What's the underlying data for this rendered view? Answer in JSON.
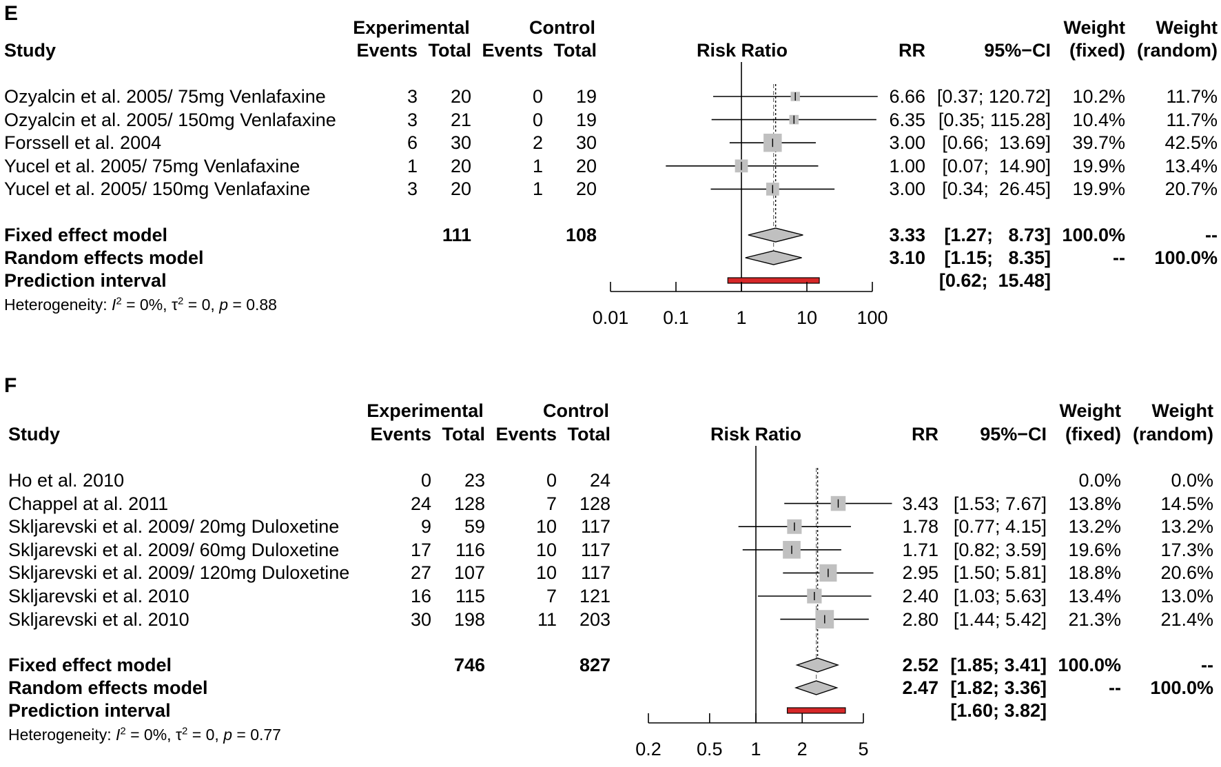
{
  "chart_data": [
    {
      "type": "forest",
      "panel_label": "E",
      "headers": {
        "study": "Study",
        "experimental": "Experimental",
        "control": "Control",
        "events": "Events",
        "total": "Total",
        "risk_ratio": "Risk Ratio",
        "rr": "RR",
        "ci": "95%−CI",
        "weight": "Weight",
        "fixed": "(fixed)",
        "random": "(random)"
      },
      "studies": [
        {
          "name": "Ozyalcin et al. 2005/ 75mg Venlafaxine",
          "e_events": "3",
          "e_total": "20",
          "c_events": "0",
          "c_total": "19",
          "rr_text": "6.66",
          "ci_text": "[0.37; 120.72]",
          "w_fixed": "10.2%",
          "w_random": "11.7%",
          "rr": 6.66,
          "lo": 0.37,
          "hi": 120.72,
          "wf": 10.2
        },
        {
          "name": "Ozyalcin et al. 2005/ 150mg Venlafaxine",
          "e_events": "3",
          "e_total": "21",
          "c_events": "0",
          "c_total": "19",
          "rr_text": "6.35",
          "ci_text": "[0.35; 115.28]",
          "w_fixed": "10.4%",
          "w_random": "11.7%",
          "rr": 6.35,
          "lo": 0.35,
          "hi": 115.28,
          "wf": 10.4
        },
        {
          "name": "Forssell et al. 2004",
          "e_events": "6",
          "e_total": "30",
          "c_events": "2",
          "c_total": "30",
          "rr_text": "3.00",
          "ci_text": "[0.66;  13.69]",
          "w_fixed": "39.7%",
          "w_random": "42.5%",
          "rr": 3.0,
          "lo": 0.66,
          "hi": 13.69,
          "wf": 39.7
        },
        {
          "name": "Yucel et al. 2005/ 75mg Venlafaxine",
          "e_events": "1",
          "e_total": "20",
          "c_events": "1",
          "c_total": "20",
          "rr_text": "1.00",
          "ci_text": "[0.07;  14.90]",
          "w_fixed": "19.9%",
          "w_random": "13.4%",
          "rr": 1.0,
          "lo": 0.07,
          "hi": 14.9,
          "wf": 19.9
        },
        {
          "name": "Yucel et al. 2005/ 150mg Venlafaxine",
          "e_events": "3",
          "e_total": "20",
          "c_events": "1",
          "c_total": "20",
          "rr_text": "3.00",
          "ci_text": "[0.34;  26.45]",
          "w_fixed": "19.9%",
          "w_random": "20.7%",
          "rr": 3.0,
          "lo": 0.34,
          "hi": 26.45,
          "wf": 19.9
        }
      ],
      "fixed": {
        "label": "Fixed effect model",
        "e_total": "111",
        "c_total": "108",
        "rr_text": "3.33",
        "ci_text": "[1.27;   8.73]",
        "w_fixed": "100.0%",
        "w_random": "--",
        "rr": 3.33,
        "lo": 1.27,
        "hi": 8.73
      },
      "random": {
        "label": "Random effects model",
        "rr_text": "3.10",
        "ci_text": "[1.15;   8.35]",
        "w_fixed": "--",
        "w_random": "100.0%",
        "rr": 3.1,
        "lo": 1.15,
        "hi": 8.35
      },
      "prediction": {
        "label": "Prediction interval",
        "ci_text": "[0.62;  15.48]",
        "lo": 0.62,
        "hi": 15.48
      },
      "heterogeneity": {
        "prefix": "Heterogeneity: ",
        "i2": "I",
        "eq1": " = 0%, ",
        "tau": "τ",
        "eq2": " = 0, ",
        "p": "p",
        "eq3": " = 0.88"
      },
      "axis": {
        "scale": "log",
        "ticks": [
          0.01,
          0.1,
          1,
          10,
          100
        ],
        "tick_labels": [
          "0.01",
          "0.1",
          "1",
          "10",
          "100"
        ],
        "range": [
          0.01,
          100
        ]
      },
      "colors": {
        "box": "#c0c0c0",
        "diamond": "#c0c0c0",
        "prediction": "#d62728"
      }
    },
    {
      "type": "forest",
      "panel_label": "F",
      "headers": {
        "study": "Study",
        "experimental": "Experimental",
        "control": "Control",
        "events": "Events",
        "total": "Total",
        "risk_ratio": "Risk Ratio",
        "rr": "RR",
        "ci": "95%−CI",
        "weight": "Weight",
        "fixed": "(fixed)",
        "random": "(random)"
      },
      "studies": [
        {
          "name": "Ho et al. 2010",
          "e_events": "0",
          "e_total": "23",
          "c_events": "0",
          "c_total": "24",
          "rr_text": "",
          "ci_text": "",
          "w_fixed": "0.0%",
          "w_random": "0.0%",
          "rr": null,
          "lo": null,
          "hi": null,
          "wf": 0
        },
        {
          "name": "Chappel at al. 2011",
          "e_events": "24",
          "e_total": "128",
          "c_events": "7",
          "c_total": "128",
          "rr_text": "3.43",
          "ci_text": "[1.53; 7.67]",
          "w_fixed": "13.8%",
          "w_random": "14.5%",
          "rr": 3.43,
          "lo": 1.53,
          "hi": 7.67,
          "wf": 13.8
        },
        {
          "name": "Skljarevski et al. 2009/ 20mg Duloxetine",
          "e_events": "9",
          "e_total": "59",
          "c_events": "10",
          "c_total": "117",
          "rr_text": "1.78",
          "ci_text": "[0.77; 4.15]",
          "w_fixed": "13.2%",
          "w_random": "13.2%",
          "rr": 1.78,
          "lo": 0.77,
          "hi": 4.15,
          "wf": 13.2
        },
        {
          "name": "Skljarevski et al. 2009/ 60mg Duloxetine",
          "e_events": "17",
          "e_total": "116",
          "c_events": "10",
          "c_total": "117",
          "rr_text": "1.71",
          "ci_text": "[0.82; 3.59]",
          "w_fixed": "19.6%",
          "w_random": "17.3%",
          "rr": 1.71,
          "lo": 0.82,
          "hi": 3.59,
          "wf": 19.6
        },
        {
          "name": "Skljarevski et al. 2009/ 120mg Duloxetine",
          "e_events": "27",
          "e_total": "107",
          "c_events": "10",
          "c_total": "117",
          "rr_text": "2.95",
          "ci_text": "[1.50; 5.81]",
          "w_fixed": "18.8%",
          "w_random": "20.6%",
          "rr": 2.95,
          "lo": 1.5,
          "hi": 5.81,
          "wf": 18.8
        },
        {
          "name": "Skljarevski et al. 2010",
          "e_events": "16",
          "e_total": "115",
          "c_events": "7",
          "c_total": "121",
          "rr_text": "2.40",
          "ci_text": "[1.03; 5.63]",
          "w_fixed": "13.4%",
          "w_random": "13.0%",
          "rr": 2.4,
          "lo": 1.03,
          "hi": 5.63,
          "wf": 13.4
        },
        {
          "name": "Skljarevski et al. 2010",
          "e_events": "30",
          "e_total": "198",
          "c_events": "11",
          "c_total": "203",
          "rr_text": "2.80",
          "ci_text": "[1.44; 5.42]",
          "w_fixed": "21.3%",
          "w_random": "21.4%",
          "rr": 2.8,
          "lo": 1.44,
          "hi": 5.42,
          "wf": 21.3
        }
      ],
      "fixed": {
        "label": "Fixed effect model",
        "e_total": "746",
        "c_total": "827",
        "rr_text": "2.52",
        "ci_text": "[1.85; 3.41]",
        "w_fixed": "100.0%",
        "w_random": "--",
        "rr": 2.52,
        "lo": 1.85,
        "hi": 3.41
      },
      "random": {
        "label": "Random effects model",
        "rr_text": "2.47",
        "ci_text": "[1.82; 3.36]",
        "w_fixed": "--",
        "w_random": "100.0%",
        "rr": 2.47,
        "lo": 1.82,
        "hi": 3.36
      },
      "prediction": {
        "label": "Prediction interval",
        "ci_text": "[1.60; 3.82]",
        "lo": 1.6,
        "hi": 3.82
      },
      "heterogeneity": {
        "prefix": "Heterogeneity: ",
        "i2": "I",
        "eq1": " = 0%, ",
        "tau": "τ",
        "eq2": " = 0, ",
        "p": "p",
        "eq3": " = 0.77"
      },
      "axis": {
        "scale": "log",
        "ticks": [
          0.2,
          0.5,
          1,
          2,
          5
        ],
        "tick_labels": [
          "0.2",
          "0.5",
          "1",
          "2",
          "5"
        ],
        "range": [
          0.2,
          5
        ]
      },
      "colors": {
        "box": "#c0c0c0",
        "diamond": "#c0c0c0",
        "prediction": "#d62728"
      }
    }
  ]
}
